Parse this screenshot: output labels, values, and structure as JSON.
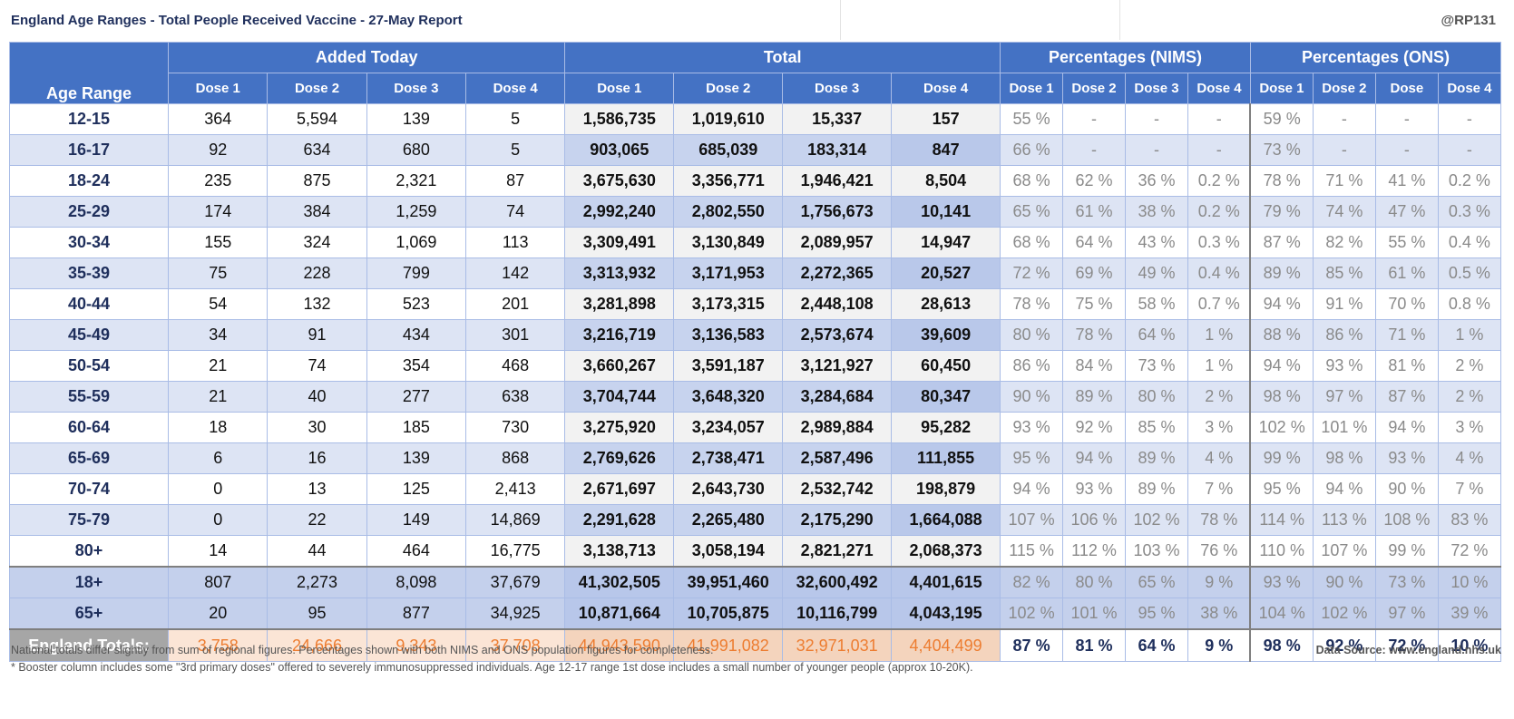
{
  "header": {
    "title": "England Age Ranges - Total People Received Vaccine - 27-May Report",
    "handle": "@RP131"
  },
  "table": {
    "groups": {
      "added": "Added Today",
      "total": "Total",
      "nims": "Percentages (NIMS)",
      "ons": "Percentages (ONS)"
    },
    "age_header": "Age Range",
    "subheaders": {
      "added": [
        "Dose 1",
        "Dose 2",
        "Dose 3",
        "Dose 4"
      ],
      "total": [
        "Dose 1",
        "Dose 2",
        "Dose 3",
        "Dose 4"
      ],
      "nims": [
        "Dose 1",
        "Dose 2",
        "Dose 3",
        "Dose 4"
      ],
      "ons": [
        "Dose 1",
        "Dose 2",
        "Dose",
        "Dose 4"
      ]
    },
    "rows": [
      {
        "age": "12-15",
        "added": [
          "364",
          "5,594",
          "139",
          "5"
        ],
        "total": [
          "1,586,735",
          "1,019,610",
          "15,337",
          "157"
        ],
        "nims": [
          "55 %",
          "-",
          "-",
          "-"
        ],
        "ons": [
          "59 %",
          "-",
          "-",
          "-"
        ]
      },
      {
        "age": "16-17",
        "added": [
          "92",
          "634",
          "680",
          "5"
        ],
        "total": [
          "903,065",
          "685,039",
          "183,314",
          "847"
        ],
        "nims": [
          "66 %",
          "-",
          "-",
          "-"
        ],
        "ons": [
          "73 %",
          "-",
          "-",
          "-"
        ]
      },
      {
        "age": "18-24",
        "added": [
          "235",
          "875",
          "2,321",
          "87"
        ],
        "total": [
          "3,675,630",
          "3,356,771",
          "1,946,421",
          "8,504"
        ],
        "nims": [
          "68 %",
          "62 %",
          "36 %",
          "0.2 %"
        ],
        "ons": [
          "78 %",
          "71 %",
          "41 %",
          "0.2 %"
        ]
      },
      {
        "age": "25-29",
        "added": [
          "174",
          "384",
          "1,259",
          "74"
        ],
        "total": [
          "2,992,240",
          "2,802,550",
          "1,756,673",
          "10,141"
        ],
        "nims": [
          "65 %",
          "61 %",
          "38 %",
          "0.2 %"
        ],
        "ons": [
          "79 %",
          "74 %",
          "47 %",
          "0.3 %"
        ]
      },
      {
        "age": "30-34",
        "added": [
          "155",
          "324",
          "1,069",
          "113"
        ],
        "total": [
          "3,309,491",
          "3,130,849",
          "2,089,957",
          "14,947"
        ],
        "nims": [
          "68 %",
          "64 %",
          "43 %",
          "0.3 %"
        ],
        "ons": [
          "87 %",
          "82 %",
          "55 %",
          "0.4 %"
        ]
      },
      {
        "age": "35-39",
        "added": [
          "75",
          "228",
          "799",
          "142"
        ],
        "total": [
          "3,313,932",
          "3,171,953",
          "2,272,365",
          "20,527"
        ],
        "nims": [
          "72 %",
          "69 %",
          "49 %",
          "0.4 %"
        ],
        "ons": [
          "89 %",
          "85 %",
          "61 %",
          "0.5 %"
        ]
      },
      {
        "age": "40-44",
        "added": [
          "54",
          "132",
          "523",
          "201"
        ],
        "total": [
          "3,281,898",
          "3,173,315",
          "2,448,108",
          "28,613"
        ],
        "nims": [
          "78 %",
          "75 %",
          "58 %",
          "0.7 %"
        ],
        "ons": [
          "94 %",
          "91 %",
          "70 %",
          "0.8 %"
        ]
      },
      {
        "age": "45-49",
        "added": [
          "34",
          "91",
          "434",
          "301"
        ],
        "total": [
          "3,216,719",
          "3,136,583",
          "2,573,674",
          "39,609"
        ],
        "nims": [
          "80 %",
          "78 %",
          "64 %",
          "1 %"
        ],
        "ons": [
          "88 %",
          "86 %",
          "71 %",
          "1 %"
        ]
      },
      {
        "age": "50-54",
        "added": [
          "21",
          "74",
          "354",
          "468"
        ],
        "total": [
          "3,660,267",
          "3,591,187",
          "3,121,927",
          "60,450"
        ],
        "nims": [
          "86 %",
          "84 %",
          "73 %",
          "1 %"
        ],
        "ons": [
          "94 %",
          "93 %",
          "81 %",
          "2 %"
        ]
      },
      {
        "age": "55-59",
        "added": [
          "21",
          "40",
          "277",
          "638"
        ],
        "total": [
          "3,704,744",
          "3,648,320",
          "3,284,684",
          "80,347"
        ],
        "nims": [
          "90 %",
          "89 %",
          "80 %",
          "2 %"
        ],
        "ons": [
          "98 %",
          "97 %",
          "87 %",
          "2 %"
        ]
      },
      {
        "age": "60-64",
        "added": [
          "18",
          "30",
          "185",
          "730"
        ],
        "total": [
          "3,275,920",
          "3,234,057",
          "2,989,884",
          "95,282"
        ],
        "nims": [
          "93 %",
          "92 %",
          "85 %",
          "3 %"
        ],
        "ons": [
          "102 %",
          "101 %",
          "94 %",
          "3 %"
        ]
      },
      {
        "age": "65-69",
        "added": [
          "6",
          "16",
          "139",
          "868"
        ],
        "total": [
          "2,769,626",
          "2,738,471",
          "2,587,496",
          "111,855"
        ],
        "nims": [
          "95 %",
          "94 %",
          "89 %",
          "4 %"
        ],
        "ons": [
          "99 %",
          "98 %",
          "93 %",
          "4 %"
        ]
      },
      {
        "age": "70-74",
        "added": [
          "0",
          "13",
          "125",
          "2,413"
        ],
        "total": [
          "2,671,697",
          "2,643,730",
          "2,532,742",
          "198,879"
        ],
        "nims": [
          "94 %",
          "93 %",
          "89 %",
          "7 %"
        ],
        "ons": [
          "95 %",
          "94 %",
          "90 %",
          "7 %"
        ]
      },
      {
        "age": "75-79",
        "added": [
          "0",
          "22",
          "149",
          "14,869"
        ],
        "total": [
          "2,291,628",
          "2,265,480",
          "2,175,290",
          "1,664,088"
        ],
        "nims": [
          "107 %",
          "106 %",
          "102 %",
          "78 %"
        ],
        "ons": [
          "114 %",
          "113 %",
          "108 %",
          "83 %"
        ]
      },
      {
        "age": "80+",
        "added": [
          "14",
          "44",
          "464",
          "16,775"
        ],
        "total": [
          "3,138,713",
          "3,058,194",
          "2,821,271",
          "2,068,373"
        ],
        "nims": [
          "115 %",
          "112 %",
          "103 %",
          "76 %"
        ],
        "ons": [
          "110 %",
          "107 %",
          "99 %",
          "72 %"
        ]
      }
    ],
    "summary_rows": [
      {
        "age": "18+",
        "added": [
          "807",
          "2,273",
          "8,098",
          "37,679"
        ],
        "total": [
          "41,302,505",
          "39,951,460",
          "32,600,492",
          "4,401,615"
        ],
        "nims": [
          "82 %",
          "80 %",
          "65 %",
          "9 %"
        ],
        "ons": [
          "93 %",
          "90 %",
          "73 %",
          "10 %"
        ]
      },
      {
        "age": "65+",
        "added": [
          "20",
          "95",
          "877",
          "34,925"
        ],
        "total": [
          "10,871,664",
          "10,705,875",
          "10,116,799",
          "4,043,195"
        ],
        "nims": [
          "102 %",
          "101 %",
          "95 %",
          "38 %"
        ],
        "ons": [
          "104 %",
          "102 %",
          "97 %",
          "39 %"
        ]
      }
    ],
    "totals": {
      "label": "England Totals:",
      "added": [
        "3,758",
        "24,666",
        "9,343",
        "37,708"
      ],
      "total": [
        "44,943,590",
        "41,991,082",
        "32,971,031",
        "4,404,499"
      ],
      "nims": [
        "87 %",
        "81 %",
        "64 %",
        "9 %"
      ],
      "ons": [
        "98 %",
        "92 %",
        "72 %",
        "10 %"
      ]
    }
  },
  "footer": {
    "note1": "National totals differ slightly from sum of regional figures. Percentages shown with both NIMS and ONS population figures for completeness.",
    "note2": "* Booster column includes some \"3rd primary doses\" offered to severely immunosuppressed individuals. Age 12-17 range 1st dose includes a small number of younger people (approx 10-20K).",
    "source": "Data Source: www.england.nhs.uk"
  },
  "colors": {
    "header_blue": "#4472c4",
    "totals_orange": "#ed7d31",
    "title_navy": "#1f2f5c"
  }
}
